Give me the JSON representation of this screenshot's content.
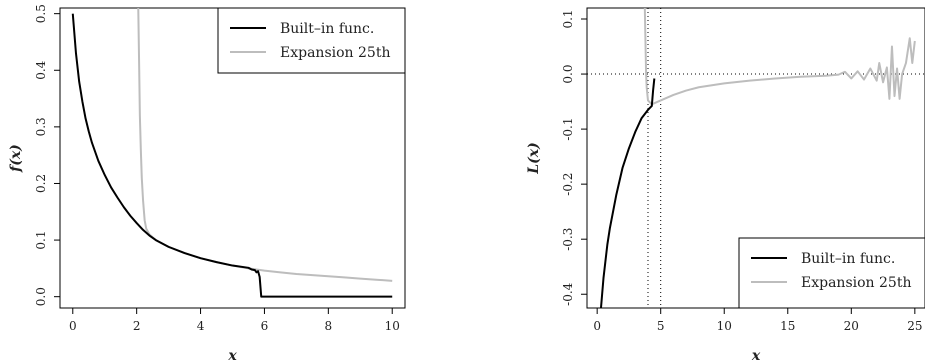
{
  "chart_data": [
    {
      "type": "line",
      "xlabel": "x",
      "ylabel": "f(x)",
      "xlim": [
        -0.4,
        10.4
      ],
      "ylim": [
        -0.02,
        0.51
      ],
      "x_ticks": [
        "0",
        "2",
        "4",
        "6",
        "8",
        "10"
      ],
      "y_ticks": [
        "0.0",
        "0.1",
        "0.2",
        "0.3",
        "0.4",
        "0.5"
      ],
      "legend_position": "top-right",
      "series": [
        {
          "name": "Built–in func.",
          "color": "#000000",
          "points": [
            [
              0.0,
              0.5
            ],
            [
              0.1,
              0.43
            ],
            [
              0.2,
              0.38
            ],
            [
              0.3,
              0.345
            ],
            [
              0.4,
              0.315
            ],
            [
              0.5,
              0.292
            ],
            [
              0.6,
              0.272
            ],
            [
              0.8,
              0.24
            ],
            [
              1.0,
              0.215
            ],
            [
              1.2,
              0.193
            ],
            [
              1.4,
              0.175
            ],
            [
              1.6,
              0.158
            ],
            [
              1.8,
              0.143
            ],
            [
              2.0,
              0.13
            ],
            [
              2.2,
              0.118
            ],
            [
              2.4,
              0.108
            ],
            [
              2.6,
              0.1
            ],
            [
              3.0,
              0.088
            ],
            [
              3.5,
              0.077
            ],
            [
              4.0,
              0.068
            ],
            [
              4.5,
              0.061
            ],
            [
              5.0,
              0.055
            ],
            [
              5.5,
              0.051
            ],
            [
              5.6,
              0.048
            ],
            [
              5.7,
              0.047
            ],
            [
              5.75,
              0.043
            ],
            [
              5.8,
              0.045
            ],
            [
              5.85,
              0.035
            ],
            [
              5.9,
              0.0
            ],
            [
              6.5,
              0.0
            ],
            [
              7.0,
              0.0
            ],
            [
              8.0,
              0.0
            ],
            [
              9.0,
              0.0
            ],
            [
              10.0,
              0.0
            ]
          ]
        },
        {
          "name": "Expansion 25th",
          "color": "#bdbdbd",
          "points": [
            [
              2.05,
              0.51
            ],
            [
              2.08,
              0.4
            ],
            [
              2.1,
              0.32
            ],
            [
              2.13,
              0.26
            ],
            [
              2.16,
              0.21
            ],
            [
              2.2,
              0.17
            ],
            [
              2.25,
              0.135
            ],
            [
              2.3,
              0.12
            ],
            [
              2.4,
              0.11
            ],
            [
              2.6,
              0.1
            ],
            [
              3.0,
              0.088
            ],
            [
              3.5,
              0.077
            ],
            [
              4.0,
              0.068
            ],
            [
              4.5,
              0.061
            ],
            [
              5.0,
              0.055
            ],
            [
              5.5,
              0.05
            ],
            [
              6.0,
              0.046
            ],
            [
              6.5,
              0.043
            ],
            [
              7.0,
              0.04
            ],
            [
              7.5,
              0.038
            ],
            [
              8.0,
              0.036
            ],
            [
              8.5,
              0.034
            ],
            [
              9.0,
              0.032
            ],
            [
              9.5,
              0.03
            ],
            [
              10.0,
              0.028
            ]
          ]
        }
      ]
    },
    {
      "type": "line",
      "xlabel": "x",
      "ylabel": "L(x)",
      "xlim": [
        -0.8,
        25.8
      ],
      "ylim": [
        -0.425,
        0.12
      ],
      "x_ticks": [
        "0",
        "5",
        "10",
        "15",
        "20",
        "25"
      ],
      "y_ticks": [
        "-0.4",
        "-0.3",
        "-0.2",
        "-0.1",
        "0.0",
        "0.1"
      ],
      "legend_position": "bottom-right",
      "reference_lines": {
        "horizontal_y": 0.0,
        "vertical_x": [
          4.0,
          5.0
        ]
      },
      "series": [
        {
          "name": "Built–in func.",
          "color": "#000000",
          "points": [
            [
              0.3,
              -0.425
            ],
            [
              0.5,
              -0.37
            ],
            [
              0.8,
              -0.31
            ],
            [
              1.0,
              -0.28
            ],
            [
              1.5,
              -0.22
            ],
            [
              2.0,
              -0.17
            ],
            [
              2.5,
              -0.135
            ],
            [
              3.0,
              -0.105
            ],
            [
              3.5,
              -0.08
            ],
            [
              4.0,
              -0.065
            ],
            [
              4.3,
              -0.058
            ],
            [
              4.4,
              -0.03
            ],
            [
              4.5,
              -0.008
            ]
          ]
        },
        {
          "name": "Expansion 25th",
          "color": "#bdbdbd",
          "points": [
            [
              3.75,
              0.12
            ],
            [
              3.8,
              0.06
            ],
            [
              3.85,
              0.0
            ],
            [
              3.9,
              -0.025
            ],
            [
              4.0,
              -0.048
            ],
            [
              4.3,
              -0.055
            ],
            [
              5.0,
              -0.048
            ],
            [
              6.0,
              -0.038
            ],
            [
              7.0,
              -0.03
            ],
            [
              8.0,
              -0.024
            ],
            [
              10.0,
              -0.017
            ],
            [
              12.0,
              -0.012
            ],
            [
              14.0,
              -0.008
            ],
            [
              16.0,
              -0.005
            ],
            [
              18.0,
              -0.003
            ],
            [
              19.0,
              -0.001
            ],
            [
              19.5,
              0.004
            ],
            [
              20.0,
              -0.008
            ],
            [
              20.5,
              0.005
            ],
            [
              21.0,
              -0.01
            ],
            [
              21.5,
              0.01
            ],
            [
              22.0,
              -0.012
            ],
            [
              22.2,
              0.02
            ],
            [
              22.5,
              -0.015
            ],
            [
              22.8,
              0.012
            ],
            [
              23.0,
              -0.045
            ],
            [
              23.2,
              0.05
            ],
            [
              23.4,
              -0.04
            ],
            [
              23.6,
              0.01
            ],
            [
              23.8,
              -0.045
            ],
            [
              24.0,
              0.0
            ],
            [
              24.3,
              0.02
            ],
            [
              24.6,
              0.065
            ],
            [
              24.8,
              0.02
            ],
            [
              25.0,
              0.06
            ]
          ]
        }
      ]
    }
  ]
}
